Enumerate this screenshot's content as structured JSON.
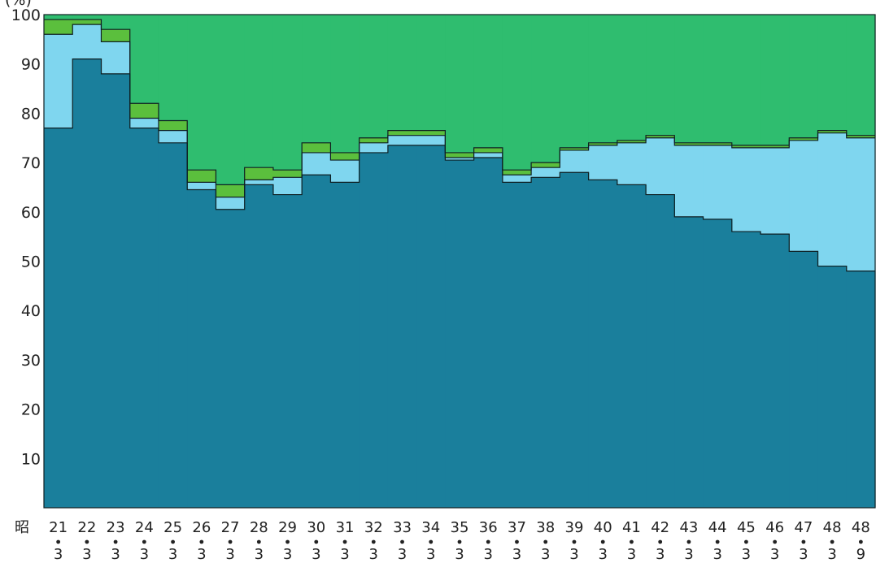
{
  "chart_data": {
    "type": "area",
    "title": "",
    "ylabel": "",
    "unit_label": "(%)",
    "era_prefix": "昭",
    "ylim": [
      0,
      100
    ],
    "y_ticks": [
      10,
      20,
      30,
      40,
      50,
      60,
      70,
      80,
      90,
      100
    ],
    "categories": [
      {
        "year": "21",
        "month": "3"
      },
      {
        "year": "22",
        "month": "3"
      },
      {
        "year": "23",
        "month": "3"
      },
      {
        "year": "24",
        "month": "3"
      },
      {
        "year": "25",
        "month": "3"
      },
      {
        "year": "26",
        "month": "3"
      },
      {
        "year": "27",
        "month": "3"
      },
      {
        "year": "28",
        "month": "3"
      },
      {
        "year": "29",
        "month": "3"
      },
      {
        "year": "30",
        "month": "3"
      },
      {
        "year": "31",
        "month": "3"
      },
      {
        "year": "32",
        "month": "3"
      },
      {
        "year": "33",
        "month": "3"
      },
      {
        "year": "34",
        "month": "3"
      },
      {
        "year": "35",
        "month": "3"
      },
      {
        "year": "36",
        "month": "3"
      },
      {
        "year": "37",
        "month": "3"
      },
      {
        "year": "38",
        "month": "3"
      },
      {
        "year": "39",
        "month": "3"
      },
      {
        "year": "40",
        "month": "3"
      },
      {
        "year": "41",
        "month": "3"
      },
      {
        "year": "42",
        "month": "3"
      },
      {
        "year": "43",
        "month": "3"
      },
      {
        "year": "44",
        "month": "3"
      },
      {
        "year": "45",
        "month": "3"
      },
      {
        "year": "46",
        "month": "3"
      },
      {
        "year": "47",
        "month": "3"
      },
      {
        "year": "48",
        "month": "3"
      },
      {
        "year": "48",
        "month": "9"
      }
    ],
    "stacked_boundaries": {
      "layer1_top": [
        77,
        91,
        88,
        77,
        74,
        64.5,
        60.5,
        65.5,
        63.5,
        67.5,
        66,
        72,
        73.5,
        73.5,
        70.5,
        71,
        66,
        67,
        68,
        66.5,
        65.5,
        63.5,
        59,
        58.5,
        56,
        55.5,
        52,
        49,
        48
      ],
      "layer2_top": [
        96,
        98,
        94.5,
        79,
        76.5,
        66,
        63,
        66.5,
        67,
        72,
        70.5,
        74,
        75.5,
        75.5,
        71,
        72,
        67.5,
        69,
        72.5,
        73.5,
        74,
        75,
        73.5,
        73.5,
        73,
        73,
        74.5,
        76,
        75
      ],
      "layer3_top": [
        99,
        99,
        97,
        82,
        78.5,
        68.5,
        65.5,
        69,
        68.5,
        74,
        72,
        75,
        76.5,
        76.5,
        72,
        73,
        68.5,
        70,
        73,
        74,
        74.5,
        75.5,
        74,
        74,
        73.5,
        73.5,
        75,
        76.5,
        75.5
      ],
      "layer4_top": [
        100,
        100,
        100,
        100,
        100,
        100,
        100,
        100,
        100,
        100,
        100,
        100,
        100,
        100,
        100,
        100,
        100,
        100,
        100,
        100,
        100,
        100,
        100,
        100,
        100,
        100,
        100,
        100,
        100
      ]
    },
    "colors": {
      "layer1": "#1a7f9c",
      "layer2": "#7fd6ef",
      "layer3": "#5bbf3d",
      "layer4": "#2fbd6f",
      "outline": "#0f1f22"
    },
    "grid": false
  }
}
